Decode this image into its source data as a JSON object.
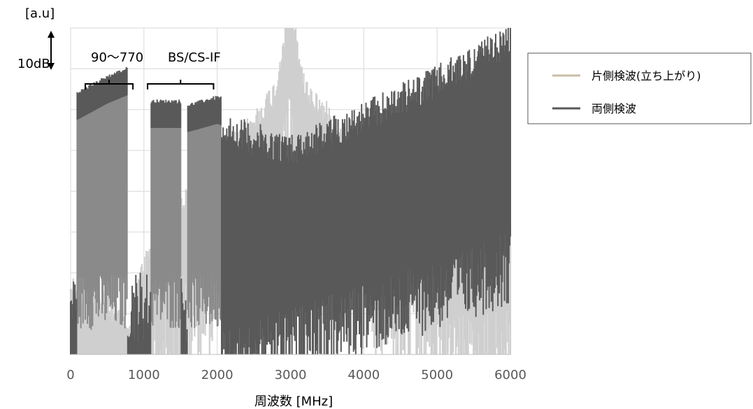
{
  "chart_data": {
    "type": "line",
    "xlabel": "周波数 [MHz]",
    "ylabel": "[a.u]",
    "xlim": [
      0,
      6000
    ],
    "x_ticks": [
      "0",
      "1000",
      "2000",
      "3000",
      "4000",
      "5000",
      "6000"
    ],
    "y_scale_marker": "10dB",
    "grid": true,
    "legend_position": "right",
    "annotations": [
      {
        "text": "90〜770",
        "x_from": 200,
        "x_to": 850
      },
      {
        "text": "BS/CS-IF",
        "x_from": 1050,
        "x_to": 1950
      }
    ],
    "series": [
      {
        "name": "片側検波(立ち上がり)",
        "color": "#c8bfa5",
        "plot_color": "#cfcfcf",
        "description_points": {
          "x": [
            0,
            500,
            800,
            1000,
            1500,
            2000,
            2500,
            2800,
            2950,
            3000,
            3050,
            3200,
            3600,
            4000,
            4500,
            5000,
            5500,
            6000
          ],
          "y_top": [
            2,
            1.5,
            1,
            2.5,
            4,
            5,
            6,
            6.8,
            8.5,
            8.5,
            8.3,
            6.8,
            6,
            5,
            4,
            3.5,
            3.2,
            3.5
          ]
        }
      },
      {
        "name": "両側検波",
        "color": "#595959",
        "plot_color": "#595959",
        "description_points": {
          "x": [
            90,
            500,
            770,
            1100,
            1500,
            1600,
            2000,
            3000,
            4000,
            5000,
            6000
          ],
          "y_top": [
            6.1,
            6.5,
            6.7,
            5.9,
            5.9,
            5.8,
            6.0,
            5.4,
            6.2,
            7.1,
            8.1
          ]
        }
      }
    ]
  }
}
